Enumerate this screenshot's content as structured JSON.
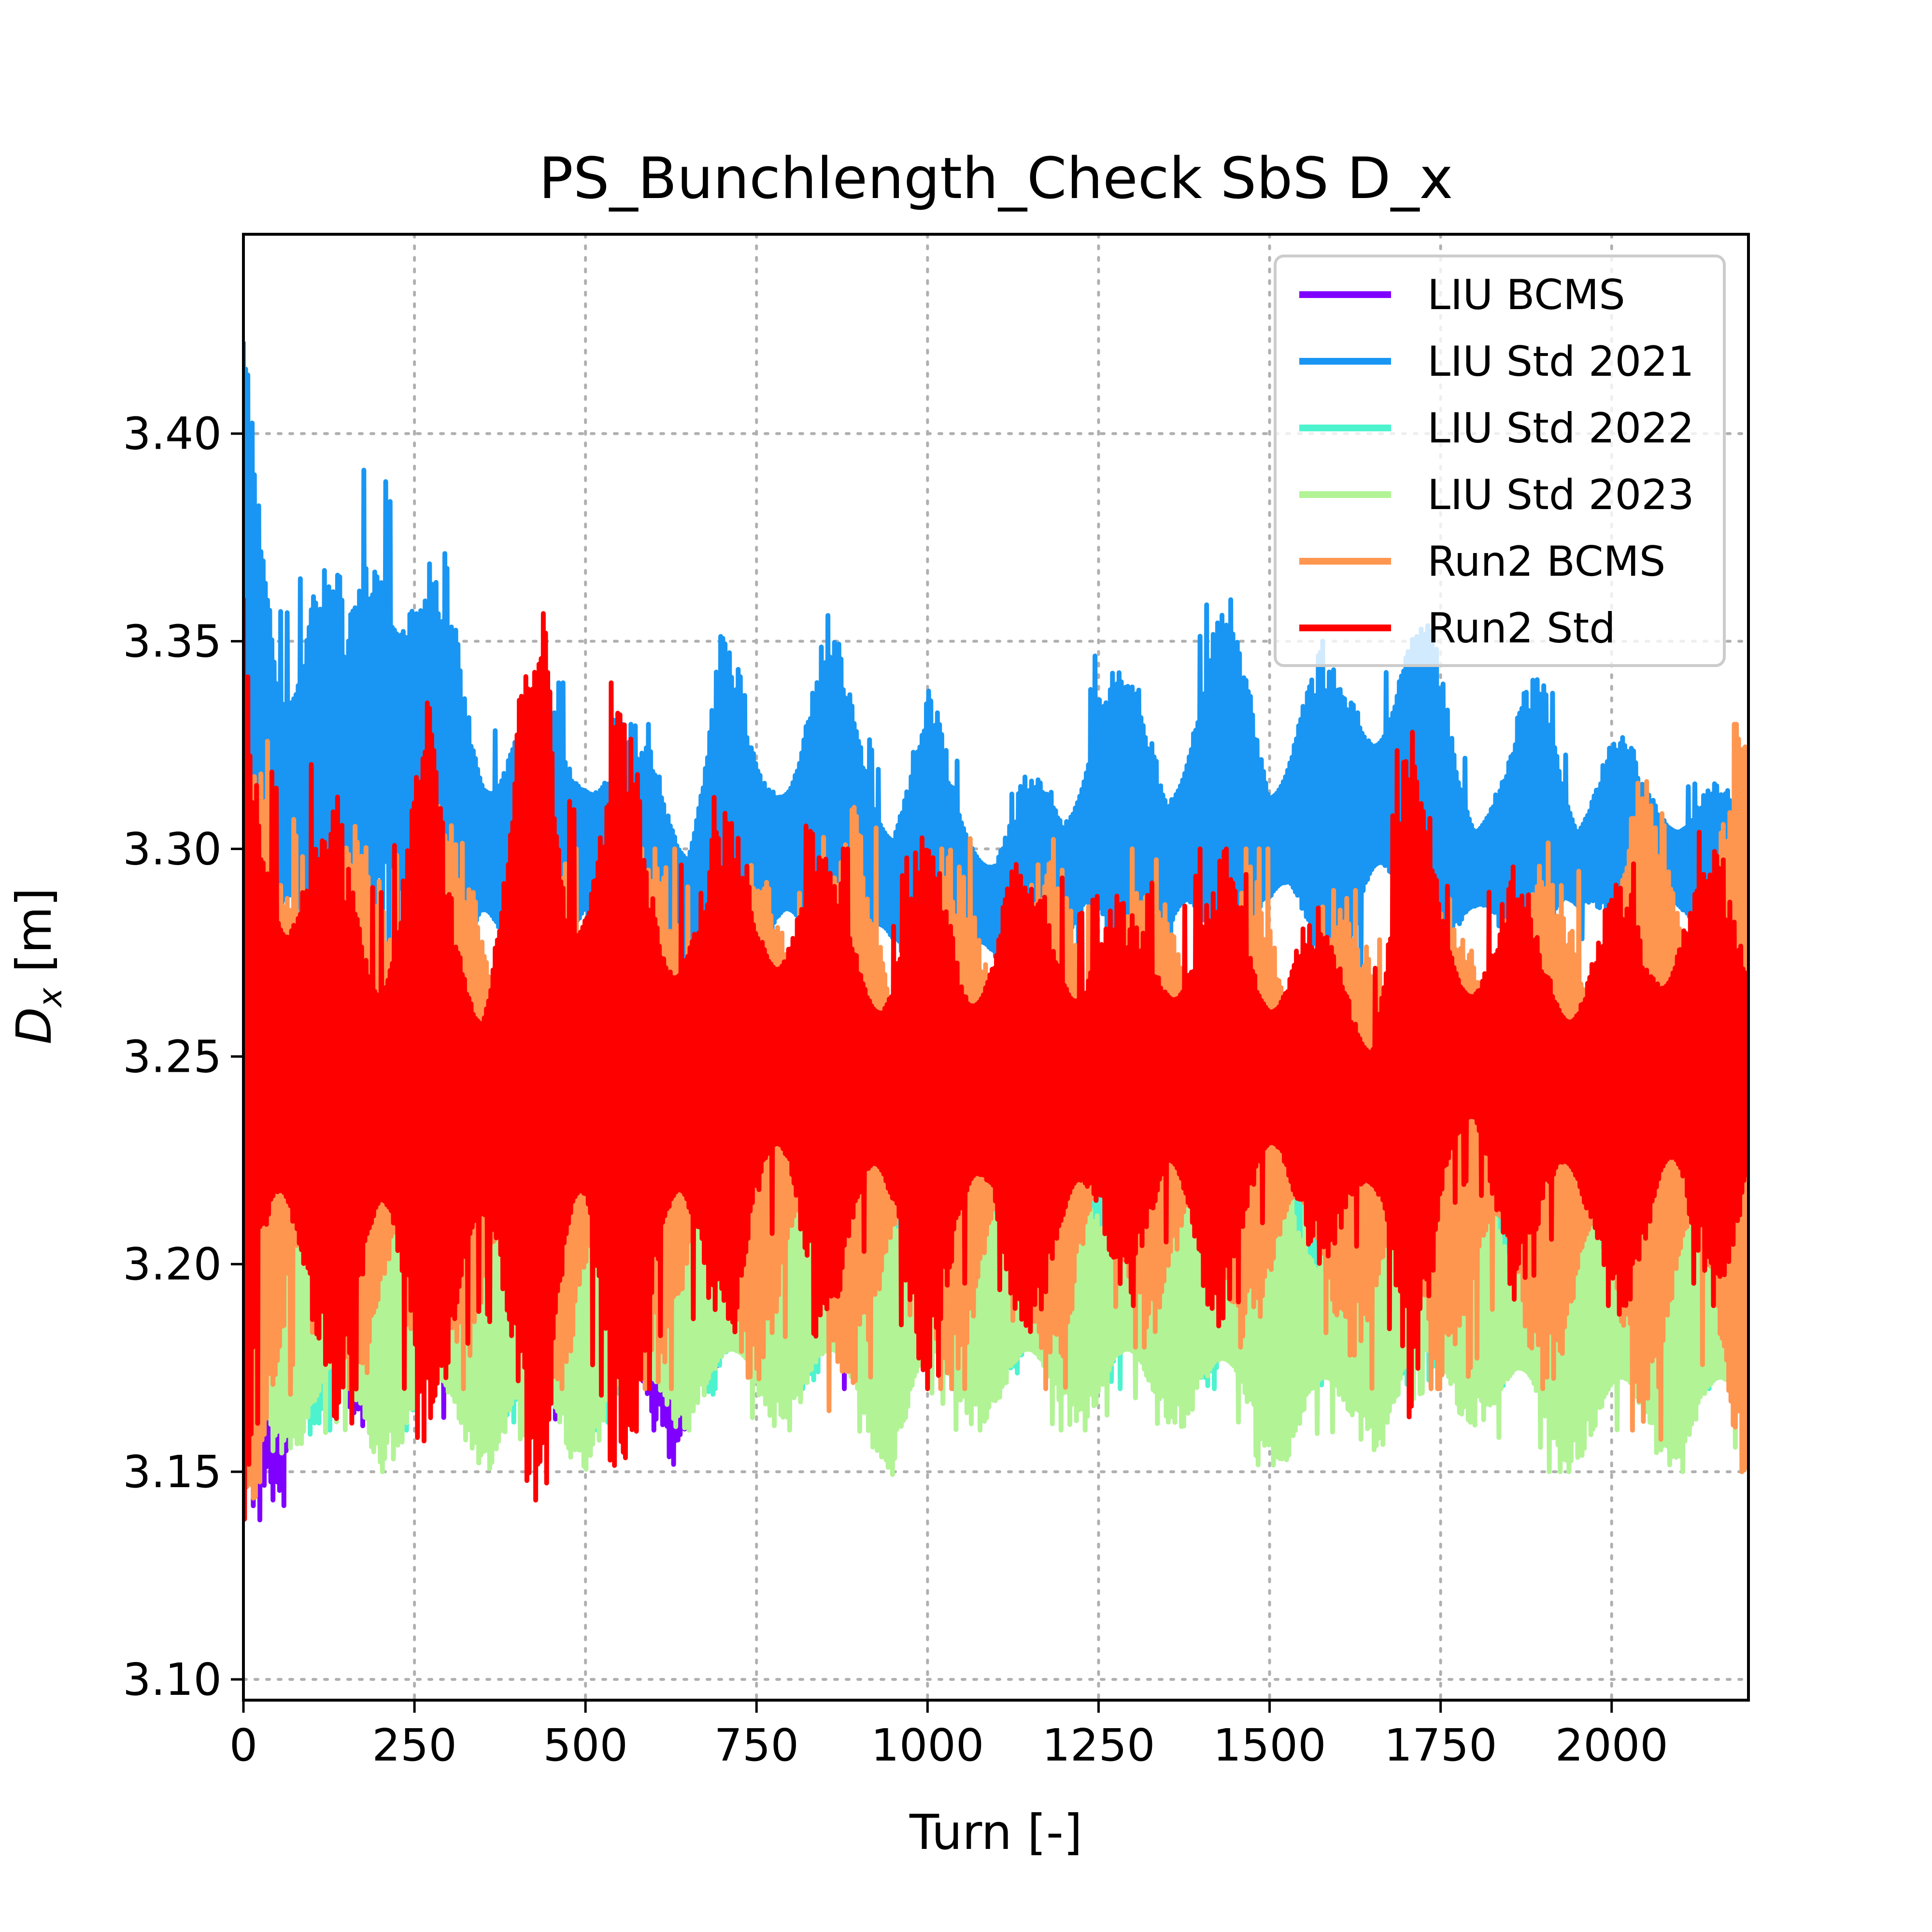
{
  "chart_data": {
    "type": "line",
    "title": "PS_Bunchlength_Check SbS D_x",
    "xlabel": "Turn [-]",
    "ylabel_main": "D",
    "ylabel_sub": "x",
    "ylabel_unit": " [m]",
    "xlim": [
      0,
      2200
    ],
    "ylim": [
      3.095,
      3.448
    ],
    "xticks": [
      0,
      250,
      500,
      750,
      1000,
      1250,
      1500,
      1750,
      2000
    ],
    "xtick_labels": [
      "0",
      "250",
      "500",
      "750",
      "1000",
      "1250",
      "1500",
      "1750",
      "2000"
    ],
    "yticks": [
      3.1,
      3.15,
      3.2,
      3.25,
      3.3,
      3.35,
      3.4
    ],
    "ytick_labels": [
      "3.10",
      "3.15",
      "3.20",
      "3.25",
      "3.30",
      "3.35",
      "3.40"
    ],
    "grid": true,
    "legend_position": "top-right",
    "series": [
      {
        "name": "LIU BCMS",
        "color": "#8000ff",
        "x": [
          0,
          100,
          200,
          300,
          400,
          500,
          600,
          670,
          700,
          800,
          900,
          1000,
          1100,
          1200,
          1270,
          1300,
          1400,
          1500,
          1600,
          1700,
          1800,
          1900,
          2000,
          2100,
          2200
        ],
        "lower": [
          3.13,
          3.15,
          3.16,
          3.16,
          3.16,
          3.16,
          3.16,
          3.14,
          3.17,
          3.17,
          3.17,
          3.17,
          3.17,
          3.17,
          3.17,
          3.18,
          3.18,
          3.18,
          3.18,
          3.18,
          3.18,
          3.18,
          3.18,
          3.18,
          3.18
        ],
        "upper": [
          3.26,
          3.25,
          3.25,
          3.25,
          3.25,
          3.25,
          3.25,
          3.25,
          3.25,
          3.25,
          3.25,
          3.25,
          3.25,
          3.25,
          3.25,
          3.25,
          3.25,
          3.25,
          3.25,
          3.25,
          3.25,
          3.25,
          3.25,
          3.25,
          3.25
        ]
      },
      {
        "name": "LIU Std 2021",
        "color": "#1996f3",
        "x": [
          0,
          50,
          100,
          150,
          200,
          250,
          300,
          350,
          400,
          450,
          500,
          550,
          600,
          650,
          700,
          750,
          800,
          850,
          900,
          950,
          1000,
          1050,
          1100,
          1150,
          1200,
          1250,
          1300,
          1350,
          1400,
          1450,
          1500,
          1550,
          1600,
          1650,
          1700,
          1750,
          1800,
          1850,
          1900,
          1950,
          2000,
          2050,
          2100,
          2150,
          2200
        ],
        "lower": [
          3.26,
          3.25,
          3.24,
          3.25,
          3.24,
          3.25,
          3.25,
          3.26,
          3.25,
          3.25,
          3.26,
          3.26,
          3.25,
          3.25,
          3.26,
          3.26,
          3.26,
          3.25,
          3.26,
          3.26,
          3.26,
          3.26,
          3.26,
          3.27,
          3.26,
          3.26,
          3.27,
          3.26,
          3.26,
          3.27,
          3.27,
          3.27,
          3.26,
          3.27,
          3.27,
          3.26,
          3.27,
          3.27,
          3.27,
          3.27,
          3.28,
          3.28,
          3.27,
          3.27,
          3.27
        ],
        "upper": [
          3.43,
          3.37,
          3.39,
          3.36,
          3.42,
          3.38,
          3.37,
          3.34,
          3.34,
          3.34,
          3.34,
          3.33,
          3.33,
          3.32,
          3.36,
          3.33,
          3.34,
          3.36,
          3.34,
          3.32,
          3.34,
          3.32,
          3.31,
          3.32,
          3.32,
          3.36,
          3.34,
          3.33,
          3.36,
          3.36,
          3.33,
          3.35,
          3.35,
          3.35,
          3.36,
          3.35,
          3.32,
          3.33,
          3.35,
          3.32,
          3.33,
          3.32,
          3.32,
          3.32,
          3.31
        ]
      },
      {
        "name": "LIU Std 2022",
        "color": "#4df3ce",
        "x": [
          0,
          100,
          200,
          300,
          400,
          500,
          600,
          700,
          800,
          900,
          1000,
          1100,
          1200,
          1300,
          1400,
          1500,
          1600,
          1700,
          1800,
          1900,
          2000,
          2100,
          2200
        ],
        "lower": [
          3.12,
          3.16,
          3.16,
          3.16,
          3.16,
          3.16,
          3.16,
          3.17,
          3.17,
          3.17,
          3.17,
          3.17,
          3.17,
          3.17,
          3.17,
          3.17,
          3.17,
          3.17,
          3.17,
          3.17,
          3.17,
          3.17,
          3.17
        ],
        "upper": [
          3.26,
          3.25,
          3.25,
          3.25,
          3.25,
          3.25,
          3.25,
          3.25,
          3.25,
          3.25,
          3.25,
          3.25,
          3.25,
          3.25,
          3.25,
          3.25,
          3.25,
          3.25,
          3.25,
          3.25,
          3.25,
          3.25,
          3.25
        ]
      },
      {
        "name": "LIU Std 2023",
        "color": "#b2f396",
        "x": [
          0,
          100,
          200,
          300,
          400,
          500,
          600,
          700,
          800,
          900,
          950,
          1000,
          1100,
          1200,
          1300,
          1400,
          1500,
          1600,
          1700,
          1800,
          1900,
          2000,
          2100,
          2200
        ],
        "lower": [
          3.15,
          3.15,
          3.15,
          3.15,
          3.15,
          3.15,
          3.16,
          3.16,
          3.16,
          3.16,
          3.145,
          3.16,
          3.16,
          3.16,
          3.16,
          3.16,
          3.15,
          3.15,
          3.16,
          3.16,
          3.15,
          3.15,
          3.15,
          3.15
        ],
        "upper": [
          3.23,
          3.23,
          3.23,
          3.22,
          3.22,
          3.22,
          3.22,
          3.22,
          3.22,
          3.22,
          3.22,
          3.22,
          3.22,
          3.22,
          3.22,
          3.22,
          3.22,
          3.22,
          3.22,
          3.22,
          3.22,
          3.22,
          3.22,
          3.22
        ]
      },
      {
        "name": "Run2 BCMS",
        "color": "#ff9650",
        "x": [
          0,
          50,
          100,
          150,
          200,
          250,
          275,
          300,
          350,
          400,
          450,
          500,
          550,
          600,
          650,
          700,
          750,
          800,
          850,
          900,
          950,
          1000,
          1050,
          1100,
          1150,
          1200,
          1250,
          1300,
          1350,
          1400,
          1450,
          1500,
          1550,
          1600,
          1650,
          1700,
          1750,
          1800,
          1850,
          1900,
          1950,
          2000,
          2050,
          2100,
          2150,
          2200
        ],
        "lower": [
          3.13,
          3.16,
          3.16,
          3.16,
          3.17,
          3.16,
          3.135,
          3.17,
          3.17,
          3.17,
          3.17,
          3.17,
          3.17,
          3.17,
          3.17,
          3.17,
          3.17,
          3.17,
          3.16,
          3.17,
          3.17,
          3.17,
          3.17,
          3.17,
          3.17,
          3.17,
          3.18,
          3.18,
          3.18,
          3.18,
          3.18,
          3.18,
          3.18,
          3.18,
          3.17,
          3.17,
          3.17,
          3.17,
          3.17,
          3.17,
          3.16,
          3.16,
          3.16,
          3.155,
          3.15,
          3.15
        ],
        "upper": [
          3.34,
          3.32,
          3.32,
          3.31,
          3.31,
          3.32,
          3.345,
          3.31,
          3.3,
          3.3,
          3.3,
          3.3,
          3.3,
          3.3,
          3.3,
          3.3,
          3.3,
          3.31,
          3.31,
          3.31,
          3.3,
          3.3,
          3.3,
          3.31,
          3.31,
          3.3,
          3.3,
          3.3,
          3.3,
          3.3,
          3.3,
          3.3,
          3.29,
          3.29,
          3.29,
          3.29,
          3.29,
          3.3,
          3.3,
          3.3,
          3.31,
          3.32,
          3.32,
          3.33,
          3.33,
          3.33
        ]
      },
      {
        "name": "Run2 Std",
        "color": "#ff0000",
        "x": [
          0,
          25,
          50,
          75,
          100,
          150,
          200,
          250,
          275,
          300,
          350,
          400,
          440,
          470,
          500,
          550,
          600,
          650,
          700,
          750,
          800,
          850,
          900,
          950,
          1000,
          1050,
          1100,
          1150,
          1200,
          1250,
          1300,
          1350,
          1400,
          1450,
          1500,
          1550,
          1600,
          1650,
          1700,
          1750,
          1800,
          1850,
          1900,
          1950,
          2000,
          2050,
          2100,
          2150,
          2200
        ],
        "lower": [
          3.11,
          3.17,
          3.16,
          3.16,
          3.17,
          3.16,
          3.17,
          3.16,
          3.15,
          3.16,
          3.17,
          3.16,
          3.12,
          3.16,
          3.16,
          3.15,
          3.17,
          3.17,
          3.18,
          3.19,
          3.19,
          3.18,
          3.19,
          3.19,
          3.17,
          3.18,
          3.19,
          3.18,
          3.17,
          3.2,
          3.19,
          3.19,
          3.18,
          3.19,
          3.2,
          3.2,
          3.2,
          3.19,
          3.16,
          3.2,
          3.21,
          3.19,
          3.2,
          3.19,
          3.19,
          3.18,
          3.19,
          3.19,
          3.2
        ],
        "upper": [
          3.37,
          3.34,
          3.34,
          3.33,
          3.32,
          3.31,
          3.31,
          3.33,
          3.34,
          3.31,
          3.3,
          3.34,
          3.38,
          3.33,
          3.34,
          3.34,
          3.31,
          3.32,
          3.31,
          3.31,
          3.31,
          3.3,
          3.3,
          3.29,
          3.31,
          3.3,
          3.3,
          3.3,
          3.31,
          3.29,
          3.29,
          3.3,
          3.3,
          3.3,
          3.29,
          3.29,
          3.28,
          3.28,
          3.34,
          3.3,
          3.29,
          3.3,
          3.29,
          3.29,
          3.29,
          3.3,
          3.31,
          3.3,
          3.29
        ]
      }
    ]
  }
}
